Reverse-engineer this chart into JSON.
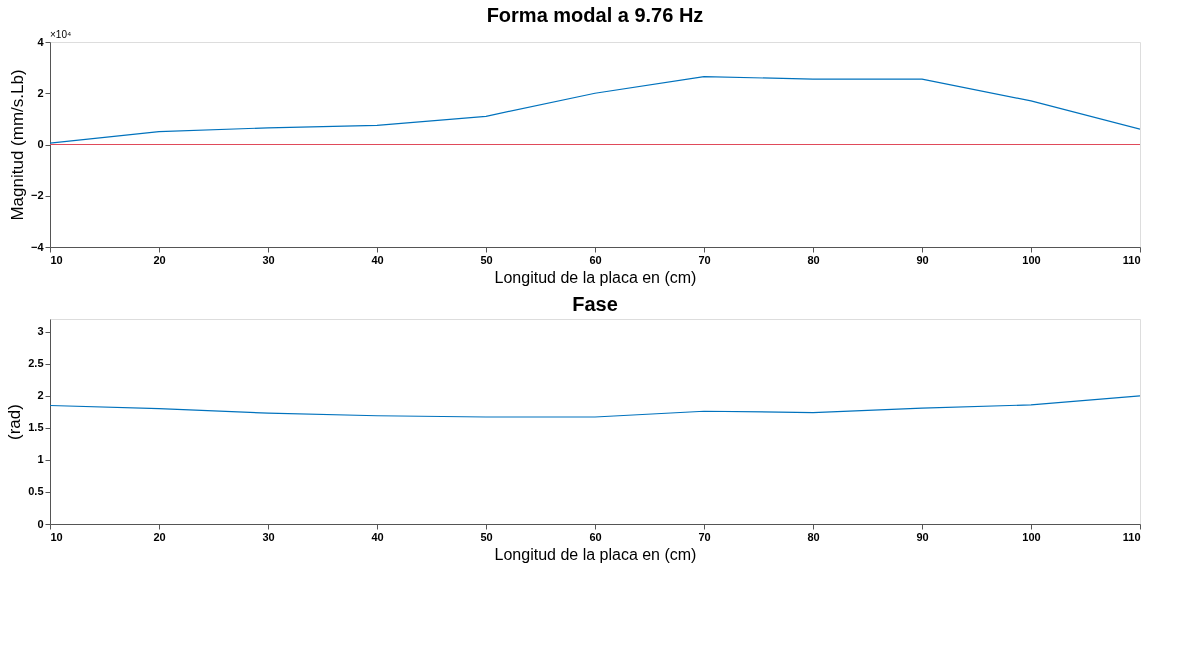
{
  "chart_data": [
    {
      "type": "line",
      "title": "Forma modal a 9.76 Hz",
      "xlabel": "Longitud de la placa en (cm)",
      "ylabel": "Magnitud (mm/s.Lb)",
      "annotations": [
        "×10⁴"
      ],
      "x": [
        10,
        20,
        30,
        40,
        50,
        60,
        70,
        80,
        90,
        100,
        110
      ],
      "series": [
        {
          "color": "#0072bd",
          "values": [
            0.05,
            0.5,
            0.65,
            0.75,
            1.1,
            2.0,
            2.65,
            2.55,
            2.55,
            1.7,
            0.6
          ]
        },
        {
          "color": "#e04a5a",
          "values": [
            0,
            0,
            0,
            0,
            0,
            0,
            0,
            0,
            0,
            0,
            0
          ]
        }
      ],
      "xlim": [
        10,
        110
      ],
      "xticks": [
        10,
        20,
        30,
        40,
        50,
        60,
        70,
        80,
        90,
        100,
        110
      ],
      "ylim": [
        -4,
        4
      ],
      "yticks": [
        -4,
        -2,
        0,
        2,
        4
      ],
      "grid": false
    },
    {
      "type": "line",
      "title": "Fase",
      "xlabel": "Longitud de la placa en (cm)",
      "ylabel": "(rad)",
      "x": [
        10,
        20,
        30,
        40,
        50,
        60,
        70,
        80,
        90,
        100,
        110
      ],
      "series": [
        {
          "color": "#0072bd",
          "values": [
            1.85,
            1.8,
            1.73,
            1.69,
            1.67,
            1.67,
            1.76,
            1.74,
            1.81,
            1.86,
            2.0
          ]
        }
      ],
      "xlim": [
        10,
        110
      ],
      "xticks": [
        10,
        20,
        30,
        40,
        50,
        60,
        70,
        80,
        90,
        100,
        110
      ],
      "ylim": [
        0,
        3.2
      ],
      "yticks": [
        0,
        0.5,
        1,
        1.5,
        2,
        2.5,
        3
      ],
      "grid": false
    }
  ]
}
